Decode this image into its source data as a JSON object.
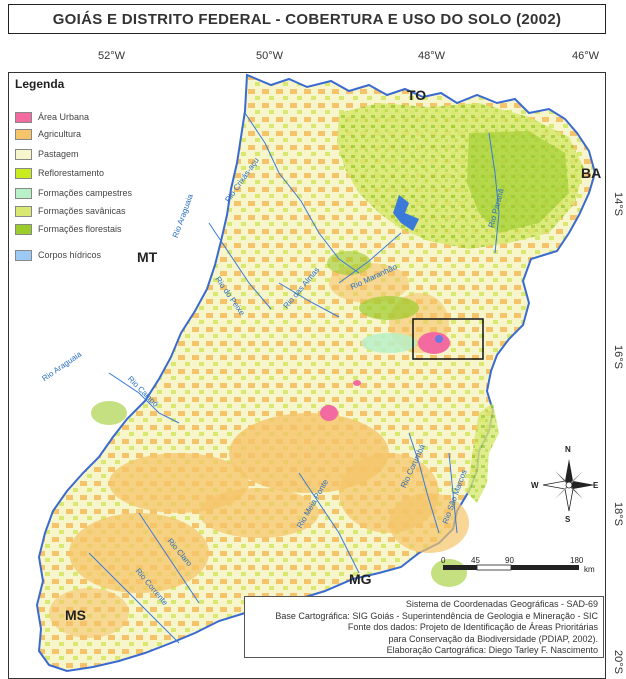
{
  "title": "GOIÁS E DISTRITO FEDERAL - COBERTURA E USO DO SOLO (2002)",
  "coords": {
    "top": [
      "52°W",
      "50°W",
      "48°W",
      "46°W"
    ],
    "right": [
      "14°S",
      "16°S",
      "18°S",
      "20°S"
    ]
  },
  "legend": {
    "title": "Legenda",
    "items": [
      {
        "label": "Área Urbana",
        "color": "#f26aa0"
      },
      {
        "label": "Agricultura",
        "color": "#f5c46a"
      },
      {
        "label": "Pastagem",
        "color": "#f7f5cc"
      },
      {
        "label": "Reflorestamento",
        "color": "#c8ec1e"
      },
      {
        "label": "Formações campestres",
        "color": "#b8f0c8"
      },
      {
        "label": "Formações savânicas",
        "color": "#d8e870"
      },
      {
        "label": "Formações  florestais",
        "color": "#9ccc2c"
      },
      {
        "label": "Corpos hídricos",
        "color": "#9ccaf4"
      }
    ]
  },
  "regions": {
    "to": "TO",
    "ba": "BA",
    "mt": "MT",
    "ms": "MS",
    "mg": "MG"
  },
  "rivers": [
    "Rio Araguaia",
    "Rio Crixás-açu",
    "Rio do Peixe",
    "Rio das Almas",
    "Rio Maranhão",
    "Rio Paranã",
    "Rio Araguaia",
    "Rio Caiapó",
    "Rio Meia Ponte",
    "Rio Corumbá",
    "Rio São Marcos",
    "Rio Claro",
    "Rio Corrente"
  ],
  "scale": {
    "ticks": [
      "0",
      "45",
      "90",
      "180"
    ],
    "unit": "km"
  },
  "compass": {
    "n": "N",
    "s": "S",
    "e": "E",
    "w": "W"
  },
  "credits": [
    "Sistema de Coordenadas Geográficas - SAD-69",
    "Base Cartográfica: SIG Goiás - Superintendência de Geologia e Mineração - SIC",
    "Fonte dos dados: Projeto de Identificação de Áreas Prioritárias",
    "para Conservação da Biodiversidade (PDIAP, 2002).",
    "Elaboração Cartográfica: Diego Tarley F. Nascimento"
  ]
}
